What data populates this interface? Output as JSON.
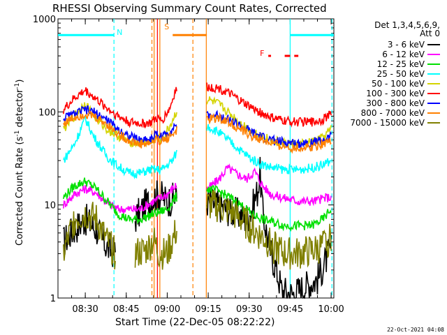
{
  "chart_data": {
    "type": "line",
    "title": "RHESSI Observing Summary Count Rates, Corrected",
    "xlabel": "Start Time (22-Dec-05 08:22:22)",
    "ylabel_main": "Corrected Count Rate (s",
    "ylabel_sup1": "-1",
    "ylabel_mid": " detector",
    "ylabel_sup2": "-1",
    "ylabel_end": ")",
    "x_unit": "minutes since 08:00 UT",
    "xlim": [
      20,
      121
    ],
    "ylim": [
      1,
      1000
    ],
    "y_scale": "log",
    "x_ticks": [
      {
        "t": 30,
        "label": "08:30"
      },
      {
        "t": 45,
        "label": "08:45"
      },
      {
        "t": 60,
        "label": "09:00"
      },
      {
        "t": 75,
        "label": "09:15"
      },
      {
        "t": 90,
        "label": "09:30"
      },
      {
        "t": 105,
        "label": "09:45"
      },
      {
        "t": 120,
        "label": "10:00"
      }
    ],
    "y_ticks": [
      {
        "v": 1,
        "label": "1"
      },
      {
        "v": 10,
        "label": "10"
      },
      {
        "v": 100,
        "label": "100"
      },
      {
        "v": 1000,
        "label": "1000"
      }
    ],
    "legend_header": [
      "Det 1,3,4,5,6,9,",
      "Att 0"
    ],
    "legend_position": "right",
    "data_gaps": [
      [
        63.5,
        74.5
      ]
    ],
    "series": [
      {
        "name": "3 - 6 keV",
        "color": "#000000",
        "points": [
          [
            22,
            4
          ],
          [
            26,
            5.5
          ],
          [
            30,
            7
          ],
          [
            34,
            5.5
          ],
          [
            38,
            3.5
          ],
          [
            41,
            3
          ],
          [
            44,
            null
          ],
          [
            48,
            7
          ],
          [
            52,
            10
          ],
          [
            55,
            12
          ],
          [
            57,
            13
          ],
          [
            60,
            11
          ],
          [
            63,
            12
          ],
          [
            75,
            11
          ],
          [
            78,
            10
          ],
          [
            82,
            9
          ],
          [
            86,
            8
          ],
          [
            89,
            7
          ],
          [
            91,
            9
          ],
          [
            93,
            14
          ],
          [
            94,
            22
          ],
          [
            95,
            8
          ],
          [
            98,
            3
          ],
          [
            100,
            2
          ],
          [
            102,
            1.2
          ],
          [
            106,
            1.1
          ],
          [
            110,
            1.3
          ],
          [
            115,
            1.6
          ],
          [
            118,
            2.5
          ],
          [
            120,
            3.5
          ]
        ]
      },
      {
        "name": "6 - 12 keV",
        "color": "#ff00ff",
        "points": [
          [
            22,
            10
          ],
          [
            26,
            13
          ],
          [
            30,
            15
          ],
          [
            34,
            13.5
          ],
          [
            38,
            10.5
          ],
          [
            42,
            9
          ],
          [
            46,
            9
          ],
          [
            50,
            9
          ],
          [
            55,
            11
          ],
          [
            60,
            13
          ],
          [
            63,
            16
          ],
          [
            75,
            15
          ],
          [
            79,
            19
          ],
          [
            82,
            25
          ],
          [
            85,
            22
          ],
          [
            89,
            19
          ],
          [
            92,
            23
          ],
          [
            95,
            16
          ],
          [
            98,
            13
          ],
          [
            102,
            12
          ],
          [
            108,
            11
          ],
          [
            114,
            11
          ],
          [
            118,
            12
          ],
          [
            120,
            12
          ]
        ]
      },
      {
        "name": "12 - 25 keV",
        "color": "#00e000",
        "points": [
          [
            22,
            12
          ],
          [
            26,
            16
          ],
          [
            30,
            18
          ],
          [
            34,
            15
          ],
          [
            38,
            11
          ],
          [
            42,
            8
          ],
          [
            46,
            7
          ],
          [
            50,
            7
          ],
          [
            55,
            8
          ],
          [
            60,
            9
          ],
          [
            63,
            12
          ],
          [
            75,
            15
          ],
          [
            79,
            14
          ],
          [
            83,
            12
          ],
          [
            87,
            10
          ],
          [
            91,
            8
          ],
          [
            95,
            7
          ],
          [
            99,
            6.5
          ],
          [
            103,
            6
          ],
          [
            108,
            6
          ],
          [
            113,
            6
          ],
          [
            117,
            7
          ],
          [
            120,
            9
          ]
        ]
      },
      {
        "name": "25 - 50 keV",
        "color": "#00ffff",
        "points": [
          [
            22,
            30
          ],
          [
            26,
            45
          ],
          [
            30,
            85
          ],
          [
            33,
            55
          ],
          [
            38,
            33
          ],
          [
            42,
            26
          ],
          [
            46,
            22
          ],
          [
            50,
            22
          ],
          [
            54,
            24
          ],
          [
            58,
            24
          ],
          [
            62,
            30
          ],
          [
            63,
            35
          ],
          [
            75,
            70
          ],
          [
            79,
            60
          ],
          [
            83,
            48
          ],
          [
            87,
            38
          ],
          [
            91,
            31
          ],
          [
            95,
            27
          ],
          [
            99,
            25
          ],
          [
            103,
            24
          ],
          [
            108,
            24
          ],
          [
            113,
            25
          ],
          [
            117,
            27
          ],
          [
            120,
            30
          ]
        ]
      },
      {
        "name": "50 - 100 keV",
        "color": "#d4d400",
        "points": [
          [
            22,
            65
          ],
          [
            26,
            90
          ],
          [
            30,
            125
          ],
          [
            33,
            90
          ],
          [
            38,
            65
          ],
          [
            42,
            55
          ],
          [
            46,
            48
          ],
          [
            50,
            46
          ],
          [
            54,
            48
          ],
          [
            56,
            52
          ],
          [
            58,
            50
          ],
          [
            61,
            70
          ],
          [
            63,
            95
          ],
          [
            75,
            135
          ],
          [
            79,
            120
          ],
          [
            83,
            95
          ],
          [
            87,
            75
          ],
          [
            91,
            63
          ],
          [
            95,
            54
          ],
          [
            99,
            49
          ],
          [
            103,
            46
          ],
          [
            108,
            45
          ],
          [
            113,
            47
          ],
          [
            117,
            53
          ],
          [
            120,
            65
          ]
        ]
      },
      {
        "name": "100 - 300 keV",
        "color": "#ff0000",
        "points": [
          [
            22,
            105
          ],
          [
            26,
            140
          ],
          [
            30,
            170
          ],
          [
            33,
            145
          ],
          [
            38,
            110
          ],
          [
            42,
            90
          ],
          [
            46,
            78
          ],
          [
            50,
            75
          ],
          [
            54,
            76
          ],
          [
            56,
            85
          ],
          [
            58,
            80
          ],
          [
            61,
            110
          ],
          [
            63,
            170
          ],
          [
            75,
            185
          ],
          [
            79,
            180
          ],
          [
            83,
            155
          ],
          [
            87,
            130
          ],
          [
            91,
            110
          ],
          [
            95,
            95
          ],
          [
            99,
            85
          ],
          [
            103,
            80
          ],
          [
            108,
            78
          ],
          [
            113,
            78
          ],
          [
            117,
            83
          ],
          [
            120,
            95
          ]
        ]
      },
      {
        "name": "300 - 800 keV",
        "color": "#0000ff",
        "points": [
          [
            22,
            85
          ],
          [
            26,
            95
          ],
          [
            30,
            105
          ],
          [
            33,
            100
          ],
          [
            38,
            82
          ],
          [
            42,
            65
          ],
          [
            46,
            55
          ],
          [
            50,
            50
          ],
          [
            54,
            51
          ],
          [
            56,
            58
          ],
          [
            58,
            54
          ],
          [
            61,
            62
          ],
          [
            63,
            72
          ],
          [
            75,
            90
          ],
          [
            79,
            92
          ],
          [
            83,
            82
          ],
          [
            87,
            70
          ],
          [
            91,
            60
          ],
          [
            95,
            53
          ],
          [
            99,
            49
          ],
          [
            103,
            47
          ],
          [
            108,
            46
          ],
          [
            113,
            47
          ],
          [
            117,
            50
          ],
          [
            120,
            54
          ]
        ]
      },
      {
        "name": "800 - 7000 keV",
        "color": "#ff8000",
        "points": [
          [
            22,
            75
          ],
          [
            26,
            88
          ],
          [
            30,
            95
          ],
          [
            33,
            90
          ],
          [
            38,
            74
          ],
          [
            42,
            58
          ],
          [
            46,
            49
          ],
          [
            50,
            45
          ],
          [
            54,
            46
          ],
          [
            56,
            51
          ],
          [
            58,
            48
          ],
          [
            61,
            55
          ],
          [
            63,
            62
          ],
          [
            75,
            83
          ],
          [
            79,
            86
          ],
          [
            83,
            76
          ],
          [
            87,
            64
          ],
          [
            91,
            55
          ],
          [
            95,
            49
          ],
          [
            99,
            45
          ],
          [
            103,
            42
          ],
          [
            108,
            41
          ],
          [
            113,
            42
          ],
          [
            117,
            46
          ],
          [
            120,
            50
          ]
        ]
      },
      {
        "name": "7000 - 15000 keV",
        "color": "#808000",
        "points": [
          [
            22,
            3
          ],
          [
            26,
            7
          ],
          [
            30,
            8
          ],
          [
            34,
            7
          ],
          [
            38,
            4
          ],
          [
            41,
            3
          ],
          [
            44,
            null
          ],
          [
            48,
            3
          ],
          [
            52,
            3.2
          ],
          [
            55,
            4.2
          ],
          [
            57,
            3
          ],
          [
            60,
            3
          ],
          [
            63,
            5
          ],
          [
            75,
            10
          ],
          [
            79,
            9.5
          ],
          [
            83,
            8.5
          ],
          [
            87,
            7
          ],
          [
            91,
            5.5
          ],
          [
            95,
            4.5
          ],
          [
            99,
            3.5
          ],
          [
            103,
            3
          ],
          [
            108,
            3
          ],
          [
            113,
            3.2
          ],
          [
            117,
            3.6
          ],
          [
            120,
            4.5
          ]
        ]
      }
    ],
    "state_bars": [
      {
        "label": "N",
        "color": "#00ffff",
        "y": 670,
        "segments": [
          [
            20,
            40.5
          ],
          [
            105,
            121
          ]
        ]
      },
      {
        "label": "S",
        "color": "#ff8000",
        "y": 670,
        "segments": [
          [
            62,
            74.5
          ]
        ]
      },
      {
        "label": "F",
        "color": "#ff0000",
        "y": 400,
        "segments": [
          [
            97,
            98
          ],
          [
            103,
            105
          ],
          [
            106.5,
            108
          ]
        ]
      }
    ],
    "vertical_lines": [
      {
        "t": 40.5,
        "color": "#00ffff",
        "dash": true
      },
      {
        "t": 105,
        "color": "#00ffff",
        "dash": false
      },
      {
        "t": 120.3,
        "color": "#00ffff",
        "dash": true
      },
      {
        "t": 54.4,
        "color": "#ff8000",
        "dash": true
      },
      {
        "t": 55.2,
        "color": "#ff8000",
        "dash": false
      },
      {
        "t": 57.3,
        "color": "#ff8000",
        "dash": false
      },
      {
        "t": 69.4,
        "color": "#ff8000",
        "dash": true
      },
      {
        "t": 74.3,
        "color": "#ff8000",
        "dash": false
      },
      {
        "t": 56.4,
        "color": "#ff0000",
        "dash": false
      }
    ]
  },
  "footer_stamp": "22-Oct-2021 04:08"
}
